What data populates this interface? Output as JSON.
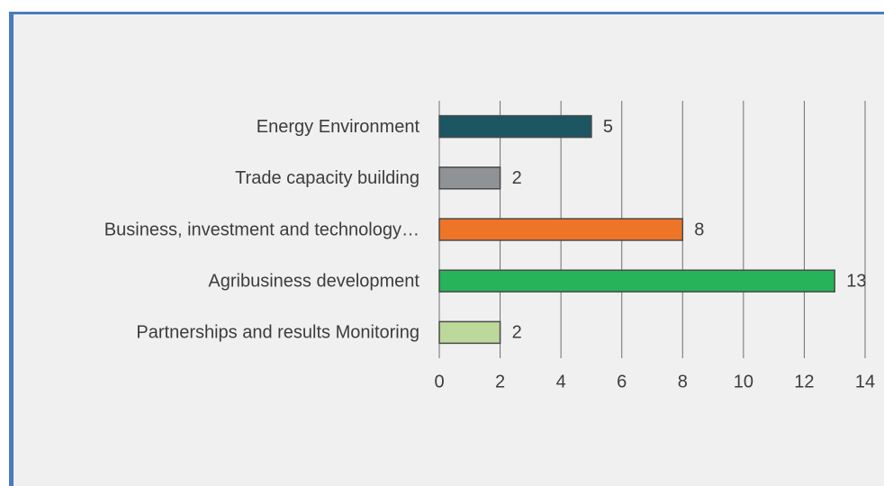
{
  "chart_data": {
    "type": "bar",
    "orientation": "horizontal",
    "categories": [
      "Energy Environment",
      "Trade capacity building",
      "Business, investment and technology…",
      "Agribusiness development",
      "Partnerships and results Monitoring"
    ],
    "values": [
      5,
      2,
      8,
      13,
      2
    ],
    "colors": [
      "#1b5662",
      "#909396",
      "#ee7427",
      "#27b35a",
      "#bcd99b"
    ],
    "xlim": [
      0,
      14
    ],
    "xticks": [
      0,
      2,
      4,
      6,
      8,
      10,
      12,
      14
    ],
    "grid": true
  }
}
